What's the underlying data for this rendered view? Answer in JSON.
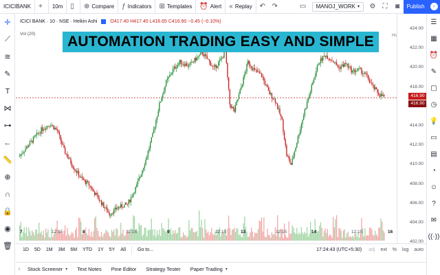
{
  "toolbar": {
    "symbol": "ICICIBANK",
    "interval": "10m",
    "compare": "Compare",
    "indicators": "Indicators",
    "templates": "Templates",
    "alert": "Alert",
    "replay": "Replay",
    "layout_name": "MANOJ_WORK",
    "publish": "Publish"
  },
  "legend": {
    "symbol_line": "ICICI BANK · 10 · NSE · Heikin Ashi",
    "ohlc": "O417.40  H417.40  L416.65  C416.90  −0.45 (−0.10%)",
    "volume": "Vol (20)"
  },
  "banner": "AUTOMATION TRADING EASY AND SIMPLE",
  "price_axis": {
    "labels": [
      "424.00",
      "422.00",
      "420.00",
      "418.00",
      "414.00",
      "412.00",
      "410.00",
      "408.00",
      "406.00",
      "404.00",
      "402.00"
    ],
    "last_price": "416.90",
    "cursor_price": "416.90"
  },
  "holiday_label": "Holiday",
  "time_axis": {
    "labels": [
      {
        "t": "7",
        "day": true
      },
      {
        "t": "12:15",
        "day": false
      },
      {
        "t": "8",
        "day": true
      },
      {
        "t": "12:15",
        "day": false
      },
      {
        "t": "9",
        "day": true
      },
      {
        "t": "12:15",
        "day": false
      },
      {
        "t": "13",
        "day": true
      },
      {
        "t": "12:15",
        "day": false
      },
      {
        "t": "14",
        "day": true
      },
      {
        "t": "12:15",
        "day": false
      },
      {
        "t": "16",
        "day": true
      }
    ]
  },
  "ranges": [
    "1D",
    "5D",
    "1M",
    "3M",
    "6M",
    "YTD",
    "1Y",
    "5Y",
    "All"
  ],
  "goto": "Go to...",
  "clock": "17:24:43 (UTC+5:30)",
  "scale_options": [
    "adj",
    "ext",
    "%",
    "log",
    "auto"
  ],
  "bottom_tabs": [
    "Stock Screener",
    "Text Notes",
    "Pine Editor",
    "Strategy Tester",
    "Paper Trading"
  ],
  "colors": {
    "up": "#1b8a2e",
    "down": "#c41b1b",
    "vol_up": "#a5d6a7",
    "vol_down": "#f2a9a9",
    "banner": "#29b6d1",
    "accent": "#2962ff"
  },
  "icons": {
    "top": [
      "plus-icon",
      "candles-icon",
      "compare-icon",
      "indicators-icon",
      "templates-icon",
      "alert-icon",
      "replay-icon",
      "undo-icon",
      "redo-icon",
      "rectangle-icon",
      "gear-icon",
      "fullscreen-icon",
      "camera-icon",
      "chevron-right-icon"
    ],
    "left": [
      "crosshair-icon",
      "trendline-icon",
      "lines-icon",
      "brush-icon",
      "text-icon",
      "pattern-icon",
      "forecast-icon",
      "back-arrow-icon",
      "ruler-icon",
      "zoom-icon",
      "magnet-icon",
      "lock-icon",
      "eye-icon",
      "trash-icon"
    ],
    "right": [
      "watchlist-icon",
      "calendar-icon",
      "alerts-icon",
      "notes-icon",
      "chat-icon",
      "ideas-icon",
      "lightbulb-icon",
      "bell-icon",
      "data-window-icon",
      "chart-stack-icon",
      "user-group-icon",
      "help-icon",
      "messages-icon",
      "broadcast-icon"
    ]
  }
}
